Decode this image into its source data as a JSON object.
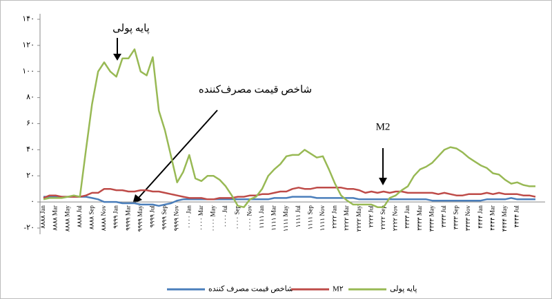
{
  "chart_data": {
    "type": "line",
    "categories": [
      "۸۸۸۸ Jan",
      null,
      "۸۸۸۸ Mar",
      null,
      "۸۸۸۸ May",
      null,
      "۸۸۸۸ Jul",
      null,
      "۸۸۸۸ Sep",
      null,
      "۸۸۸۸ Nov",
      null,
      "۹۹۹۹ Jan",
      null,
      "۹۹۹۹ Mar",
      null,
      "۹۹۹۹ May",
      null,
      "۹۹۹۹ Jul",
      null,
      "۹۹۹۹ Sep",
      null,
      "۹۹۹۹ Nov",
      null,
      "۰۰۰۰ Jan",
      null,
      "۰۰۰۰ Mar",
      null,
      "۰۰۰۰ May",
      null,
      "۰۰۰۰ Jul",
      null,
      "۰۰۰۰ Sep",
      null,
      "۰۰۰۰ Nov",
      null,
      "۱۱۱۱ Jan",
      null,
      "۱۱۱۱ Mar",
      null,
      "۱۱۱۱ May",
      null,
      "۱۱۱۱ Jul",
      null,
      "۱۱۱۱ Sep",
      null,
      "۱۱۱۱ Nov",
      null,
      "۲۲۲۲ Jan",
      null,
      "۲۲۲۲ Mar",
      null,
      "۲۲۲۲ May",
      null,
      "۲۲۲۲ Jul",
      null,
      "۲۲۲۲ Sep",
      null,
      "۲۲۲۲ Nov",
      null,
      "۳۳۳۳ Jan",
      null,
      "۳۳۳۳ Mar",
      null,
      "۳۳۳۳ May",
      null,
      "۳۳۳۳ Jul",
      null,
      "۳۳۳۳ Sep",
      null,
      "۳۳۳۳ Nov",
      null,
      "۴۴۴۴ Jan",
      null,
      "۴۴۴۴ Mar",
      null,
      "۴۴۴۴ May",
      null,
      "۴۴۴۴ Jul",
      null,
      null,
      null
    ],
    "series": [
      {
        "name": "شاخص قیمت مصرف کننده",
        "color": "#4a7ebb",
        "values": [
          4,
          4,
          4,
          4,
          4,
          4,
          4,
          4,
          3,
          2,
          0,
          0,
          0,
          -1,
          -1,
          -1,
          -2,
          -2,
          -2,
          -3,
          -2,
          -1,
          1,
          2,
          2,
          2,
          2,
          2,
          2,
          2,
          2,
          2,
          2,
          2,
          2,
          2,
          2,
          2,
          3,
          3,
          3,
          4,
          4,
          4,
          4,
          3,
          3,
          3,
          3,
          3,
          3,
          3,
          2,
          2,
          2,
          2,
          2,
          2,
          2,
          2,
          2,
          2,
          2,
          2,
          1,
          1,
          1,
          1,
          1,
          1,
          1,
          1,
          1,
          2,
          2,
          2,
          2,
          3,
          2,
          2,
          2,
          2
        ]
      },
      {
        "name": "M۲",
        "color": "#be4b48",
        "values": [
          3,
          5,
          5,
          4,
          4,
          4,
          4,
          5,
          7,
          7,
          10,
          10,
          9,
          9,
          8,
          8,
          9,
          9,
          8,
          8,
          7,
          6,
          5,
          4,
          3,
          3,
          3,
          2,
          2,
          3,
          3,
          3,
          4,
          4,
          5,
          5,
          6,
          6,
          7,
          8,
          8,
          10,
          11,
          10,
          10,
          11,
          11,
          11,
          11,
          11,
          10,
          10,
          9,
          7,
          8,
          7,
          8,
          7,
          8,
          8,
          7,
          7,
          7,
          7,
          7,
          6,
          7,
          6,
          5,
          5,
          6,
          6,
          6,
          7,
          6,
          7,
          6,
          6,
          6,
          5,
          5,
          4
        ]
      },
      {
        "name": "پایه پولی",
        "color": "#98b954",
        "values": [
          2,
          3,
          3,
          3,
          4,
          5,
          4,
          40,
          75,
          100,
          107,
          100,
          96,
          110,
          110,
          117,
          100,
          97,
          111,
          70,
          55,
          35,
          15,
          23,
          36,
          18,
          16,
          20,
          20,
          17,
          12,
          5,
          -3,
          -4,
          2,
          4,
          10,
          20,
          25,
          29,
          35,
          36,
          36,
          40,
          37,
          34,
          35,
          25,
          14,
          5,
          1,
          -2,
          -2,
          -2,
          -2,
          -4,
          -4,
          3,
          5,
          9,
          12,
          20,
          25,
          27,
          30,
          35,
          40,
          42,
          41,
          38,
          34,
          31,
          28,
          26,
          22,
          21,
          17,
          14,
          15,
          13,
          12,
          12
        ]
      }
    ],
    "ylim": [
      -20,
      140
    ],
    "yticks": [
      {
        "value": -20,
        "label": "-۲۰"
      },
      {
        "value": 0,
        "label": "۰"
      },
      {
        "value": 20,
        "label": "۲۰"
      },
      {
        "value": 40,
        "label": "۴۰"
      },
      {
        "value": 60,
        "label": "۶۰"
      },
      {
        "value": 80,
        "label": "۸۰"
      },
      {
        "value": 100,
        "label": "۱۰۰"
      },
      {
        "value": 120,
        "label": "۱۲۰"
      },
      {
        "value": 140,
        "label": "۱۴۰"
      }
    ],
    "annotations": [
      "پایه پولی",
      "شاخص قیمت مصرف‌کننده",
      "M2"
    ],
    "grid": false
  }
}
